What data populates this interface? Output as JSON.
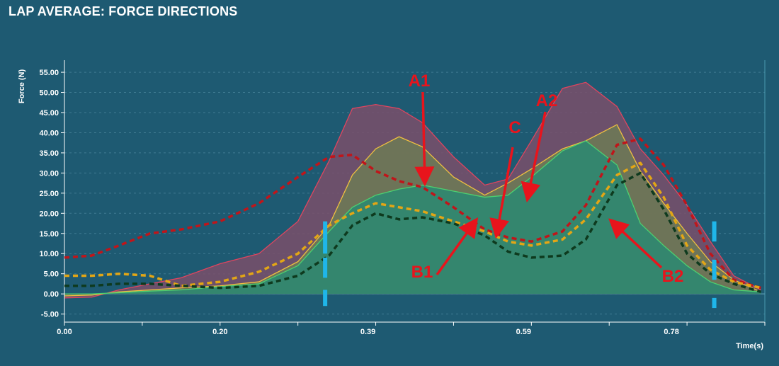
{
  "header": {
    "title": "LAP AVERAGE: FORCE DIRECTIONS"
  },
  "chart_data": {
    "type": "area",
    "title": "LAP AVERAGE: FORCE DIRECTIONS",
    "xlabel": "Time(s)",
    "ylabel": "Force (N)",
    "xlim": [
      0,
      0.9
    ],
    "ylim": [
      -7,
      58
    ],
    "x_ticks": [
      0.0,
      0.2,
      0.39,
      0.59,
      0.78
    ],
    "x_tick_labels": [
      "0.00",
      "0.20",
      "0.39",
      "0.59",
      "0.78"
    ],
    "y_ticks": [
      -5,
      0,
      5,
      10,
      15,
      20,
      25,
      30,
      35,
      40,
      45,
      50,
      55
    ],
    "y_tick_labels": [
      "-5.00",
      "0.00",
      "5.00",
      "10.00",
      "15.00",
      "20.00",
      "25.00",
      "30.00",
      "35.00",
      "40.00",
      "45.00",
      "50.00",
      "55.00"
    ],
    "grid": {
      "horizontal": true,
      "style": "dashed"
    },
    "series": [
      {
        "name": "",
        "style": "area-solid",
        "color": "#e0455f",
        "fill": "#7a4f6a",
        "x": [
          0.0,
          0.035,
          0.07,
          0.11,
          0.15,
          0.2,
          0.25,
          0.3,
          0.34,
          0.37,
          0.4,
          0.43,
          0.46,
          0.5,
          0.54,
          0.57,
          0.6,
          0.64,
          0.67,
          0.71,
          0.74,
          0.77,
          0.8,
          0.83,
          0.86,
          0.895
        ],
        "y": [
          -1.0,
          -0.8,
          1.0,
          2.5,
          4.0,
          7.5,
          10.0,
          18.0,
          33.0,
          46.0,
          47.0,
          46.0,
          42.5,
          34.0,
          27.0,
          28.5,
          38.0,
          51.0,
          52.5,
          46.5,
          36.0,
          29.5,
          22.0,
          13.0,
          4.5,
          1.0
        ]
      },
      {
        "name": "",
        "style": "area-solid",
        "color": "#f0c040",
        "fill": "#6d7a55",
        "x": [
          0.0,
          0.035,
          0.07,
          0.11,
          0.15,
          0.2,
          0.25,
          0.3,
          0.34,
          0.37,
          0.4,
          0.43,
          0.46,
          0.5,
          0.54,
          0.57,
          0.6,
          0.64,
          0.67,
          0.71,
          0.74,
          0.77,
          0.8,
          0.83,
          0.86,
          0.895
        ],
        "y": [
          -0.5,
          -0.3,
          0.5,
          1.0,
          1.5,
          2.0,
          3.0,
          8.0,
          17.0,
          29.5,
          36.0,
          39.0,
          36.5,
          29.0,
          24.5,
          27.5,
          31.0,
          36.0,
          38.0,
          42.0,
          30.5,
          22.5,
          15.0,
          8.0,
          3.5,
          0.5
        ]
      },
      {
        "name": "",
        "style": "area-solid",
        "color": "#4cd070",
        "fill": "#2a8a72",
        "x": [
          0.0,
          0.035,
          0.07,
          0.11,
          0.15,
          0.2,
          0.25,
          0.3,
          0.34,
          0.37,
          0.4,
          0.43,
          0.46,
          0.5,
          0.54,
          0.57,
          0.6,
          0.64,
          0.67,
          0.71,
          0.74,
          0.77,
          0.8,
          0.83,
          0.86,
          0.895
        ],
        "y": [
          0.0,
          0.0,
          0.3,
          0.7,
          1.0,
          1.8,
          2.5,
          7.0,
          15.5,
          21.5,
          24.5,
          26.0,
          27.0,
          25.5,
          24.0,
          24.5,
          29.0,
          35.5,
          38.0,
          32.0,
          17.5,
          12.0,
          7.0,
          3.0,
          1.0,
          0.5
        ]
      },
      {
        "name": "",
        "style": "dashed",
        "color": "#c0151a",
        "x": [
          0.0,
          0.035,
          0.07,
          0.11,
          0.15,
          0.2,
          0.25,
          0.3,
          0.34,
          0.37,
          0.4,
          0.43,
          0.46,
          0.5,
          0.54,
          0.57,
          0.6,
          0.64,
          0.67,
          0.71,
          0.74,
          0.77,
          0.8,
          0.83,
          0.86,
          0.895
        ],
        "y": [
          9.0,
          9.5,
          12.0,
          15.0,
          16.0,
          18.0,
          22.5,
          29.0,
          34.0,
          34.5,
          30.5,
          28.0,
          26.5,
          21.5,
          16.0,
          14.0,
          13.0,
          15.5,
          22.0,
          37.0,
          38.5,
          32.0,
          22.0,
          10.0,
          3.5,
          1.5
        ]
      },
      {
        "name": "",
        "style": "dashed",
        "color": "#e3a615",
        "x": [
          0.0,
          0.035,
          0.07,
          0.11,
          0.15,
          0.2,
          0.25,
          0.3,
          0.34,
          0.37,
          0.4,
          0.43,
          0.46,
          0.5,
          0.54,
          0.57,
          0.6,
          0.64,
          0.67,
          0.71,
          0.74,
          0.77,
          0.8,
          0.83,
          0.86,
          0.895
        ],
        "y": [
          4.5,
          4.5,
          5.0,
          4.5,
          2.0,
          3.0,
          5.5,
          10.0,
          17.0,
          20.0,
          22.5,
          21.5,
          20.5,
          18.0,
          15.5,
          13.0,
          12.0,
          13.5,
          18.5,
          29.5,
          32.5,
          24.0,
          12.0,
          6.0,
          3.0,
          1.5
        ]
      },
      {
        "name": "",
        "style": "dashed",
        "color": "#0e3a1e",
        "x": [
          0.0,
          0.035,
          0.07,
          0.11,
          0.15,
          0.2,
          0.25,
          0.3,
          0.34,
          0.37,
          0.4,
          0.43,
          0.46,
          0.5,
          0.54,
          0.57,
          0.6,
          0.64,
          0.67,
          0.71,
          0.74,
          0.77,
          0.8,
          0.83,
          0.86,
          0.895
        ],
        "y": [
          2.0,
          2.0,
          2.5,
          2.5,
          2.0,
          1.5,
          2.0,
          4.5,
          9.5,
          17.0,
          20.0,
          18.5,
          19.0,
          17.5,
          14.5,
          10.5,
          9.0,
          9.5,
          13.5,
          27.0,
          30.0,
          21.0,
          10.0,
          5.0,
          2.5,
          0.5
        ]
      }
    ],
    "markers": [
      {
        "x": 0.335,
        "y_ranges": [
          [
            10,
            18
          ],
          [
            4,
            9
          ],
          [
            -3,
            1
          ]
        ],
        "color": "#1fb6ea"
      },
      {
        "x": 0.835,
        "y_ranges": [
          [
            13,
            18
          ],
          [
            3.5,
            8.5
          ],
          [
            -3.5,
            -1
          ]
        ],
        "color": "#1fb6ea"
      }
    ],
    "annotations": [
      {
        "label": "A1",
        "color": "#e8141c",
        "tip": [
          0.463,
          28.5
        ]
      },
      {
        "label": "A2",
        "color": "#e8141c",
        "tip": [
          0.596,
          24.5
        ]
      },
      {
        "label": "C",
        "color": "#e8141c",
        "tip": [
          0.556,
          15.5
        ]
      },
      {
        "label": "B1",
        "color": "#e8141c",
        "tip": [
          0.526,
          17.5
        ]
      },
      {
        "label": "B2",
        "color": "#e8141c",
        "tip": [
          0.706,
          17.5
        ]
      }
    ]
  }
}
